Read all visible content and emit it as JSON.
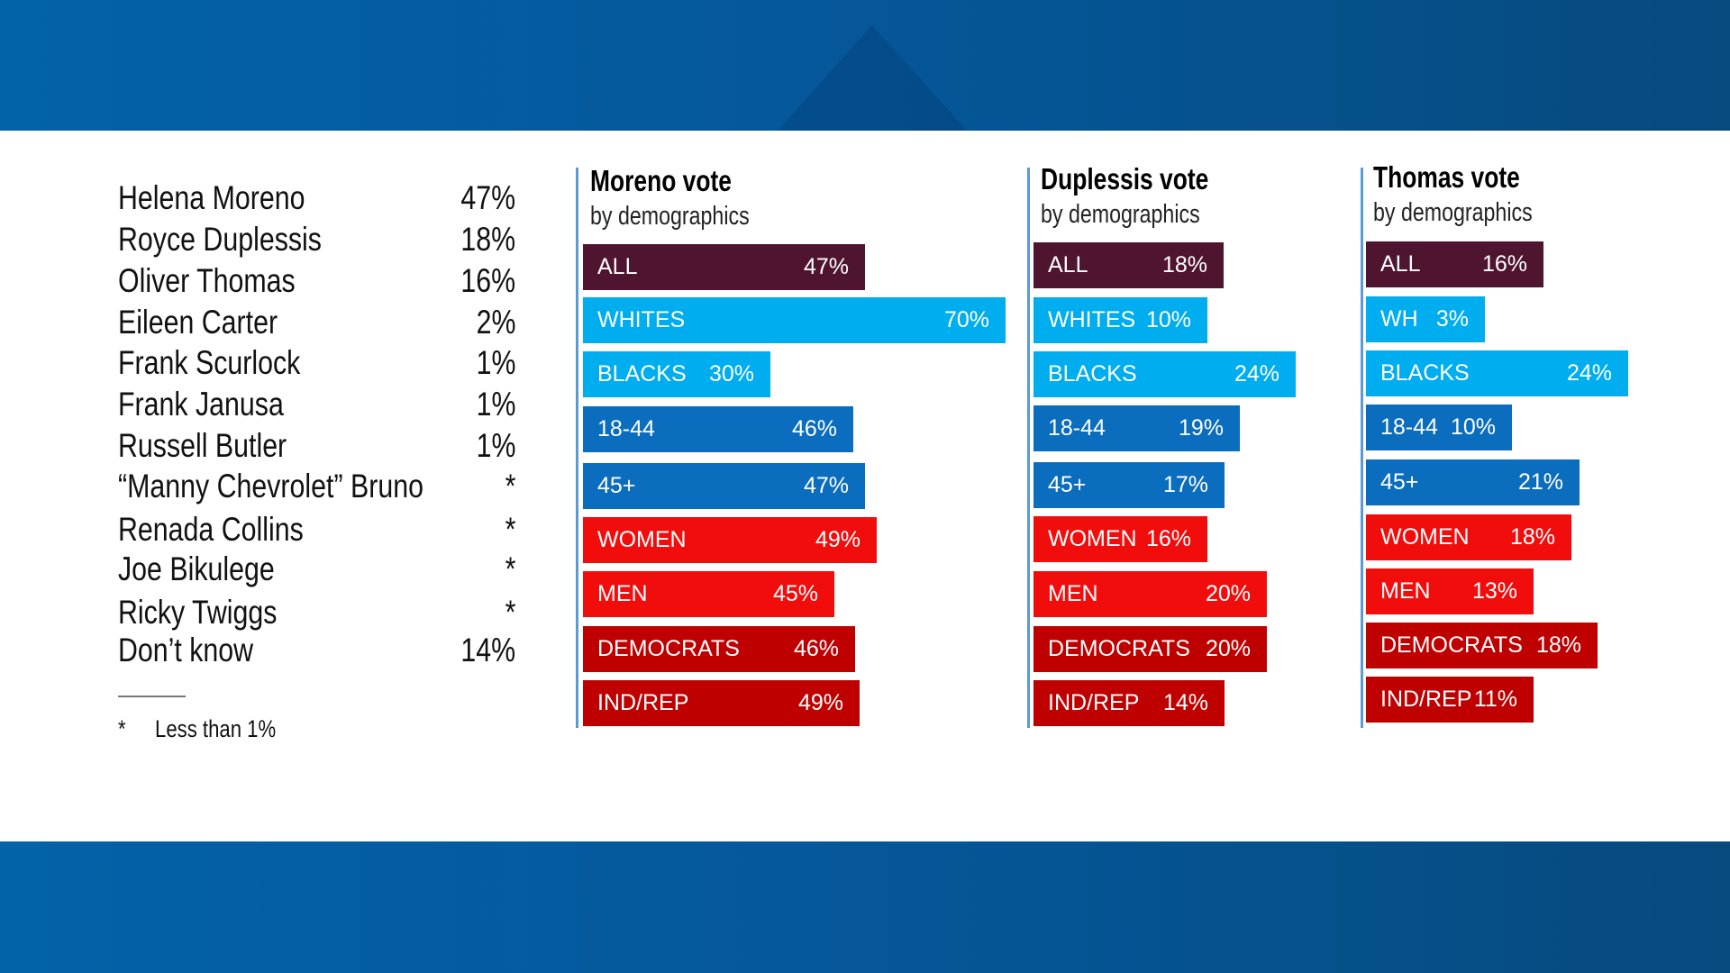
{
  "results": {
    "candidates": [
      {
        "name": "Helena Moreno",
        "value": "47%"
      },
      {
        "name": "Royce Duplessis",
        "value": "18%"
      },
      {
        "name": "Oliver Thomas",
        "value": "16%"
      },
      {
        "name": "Eileen Carter",
        "value": "2%"
      },
      {
        "name": "Frank Scurlock",
        "value": "1%"
      },
      {
        "name": "Frank Janusa",
        "value": "1%"
      },
      {
        "name": "Russell Butler",
        "value": "1%"
      },
      {
        "name": "“Manny Chevrolet” Bruno",
        "value": "*"
      },
      {
        "name": "Renada Collins",
        "value": "*"
      },
      {
        "name": "Joe Bikulege",
        "value": "*"
      },
      {
        "name": "Ricky Twiggs",
        "value": "*"
      },
      {
        "name": "Don’t know",
        "value": "14%"
      }
    ],
    "footnote_symbol": "*",
    "footnote_text": "Less than 1%"
  },
  "colors": {
    "all": "#4f1530",
    "race": "#00adee",
    "age": "#0b6dbd",
    "gender": "#f20d0d",
    "party": "#bf0000",
    "band": "#05579a"
  },
  "chart_data": [
    {
      "type": "bar",
      "orientation": "horizontal",
      "title": "Moreno vote",
      "subtitle": "by demographics",
      "categories": [
        "ALL",
        "WHITES",
        "BLACKS",
        "18-44",
        "45+",
        "WOMEN",
        "MEN",
        "DEMOCRATS",
        "IND/REP"
      ],
      "values": [
        47,
        70,
        30,
        46,
        47,
        49,
        45,
        46,
        49
      ],
      "labels": [
        "47%",
        "70%",
        "30%",
        "46%",
        "47%",
        "49%",
        "45%",
        "46%",
        "49%"
      ]
    },
    {
      "type": "bar",
      "orientation": "horizontal",
      "title": "Duplessis vote",
      "subtitle": "by demographics",
      "categories": [
        "ALL",
        "WHITES",
        "BLACKS",
        "18-44",
        "45+",
        "WOMEN",
        "MEN",
        "DEMOCRATS",
        "IND/REP"
      ],
      "values": [
        18,
        10,
        24,
        19,
        17,
        16,
        20,
        20,
        14
      ],
      "labels": [
        "18%",
        "10%",
        "24%",
        "19%",
        "17%",
        "16%",
        "20%",
        "20%",
        "14%"
      ]
    },
    {
      "type": "bar",
      "orientation": "horizontal",
      "title": "Thomas vote",
      "subtitle": "by demographics",
      "categories": [
        "ALL",
        "WH",
        "BLACKS",
        "18-44",
        "45+",
        "WOMEN",
        "MEN",
        "DEMOCRATS",
        "IND/REP"
      ],
      "values": [
        16,
        3,
        24,
        10,
        21,
        18,
        13,
        18,
        11
      ],
      "labels": [
        "16%",
        "3%",
        "24%",
        "10%",
        "21%",
        "18%",
        "13%",
        "18%",
        "11%"
      ]
    }
  ]
}
